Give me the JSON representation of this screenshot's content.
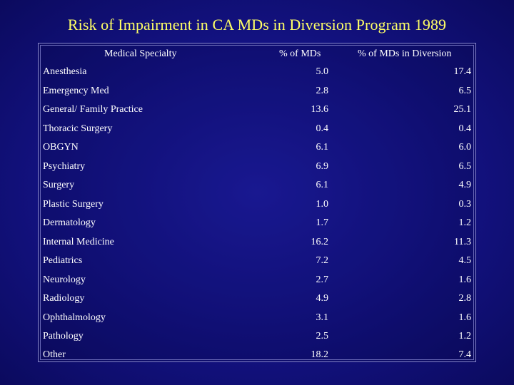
{
  "slide": {
    "title": "Risk of Impairment in CA MDs in Diversion Program 1989"
  },
  "table": {
    "headers": {
      "specialty": "Medical Specialty",
      "pct_mds": "% of MDs",
      "pct_diversion": "% of MDs in Diversion"
    },
    "rows": [
      {
        "specialty": "Anesthesia",
        "pct_mds": "5.0",
        "pct_diversion": "17.4"
      },
      {
        "specialty": "Emergency Med",
        "pct_mds": "2.8",
        "pct_diversion": "6.5"
      },
      {
        "specialty": "General/ Family Practice",
        "pct_mds": "13.6",
        "pct_diversion": "25.1"
      },
      {
        "specialty": "Thoracic Surgery",
        "pct_mds": "0.4",
        "pct_diversion": "0.4"
      },
      {
        "specialty": "OBGYN",
        "pct_mds": "6.1",
        "pct_diversion": "6.0"
      },
      {
        "specialty": "Psychiatry",
        "pct_mds": "6.9",
        "pct_diversion": "6.5"
      },
      {
        "specialty": "Surgery",
        "pct_mds": "6.1",
        "pct_diversion": "4.9"
      },
      {
        "specialty": "Plastic Surgery",
        "pct_mds": "1.0",
        "pct_diversion": "0.3"
      },
      {
        "specialty": "Dermatology",
        "pct_mds": "1.7",
        "pct_diversion": "1.2"
      },
      {
        "specialty": "Internal Medicine",
        "pct_mds": "16.2",
        "pct_diversion": "11.3"
      },
      {
        "specialty": "Pediatrics",
        "pct_mds": "7.2",
        "pct_diversion": "4.5"
      },
      {
        "specialty": "Neurology",
        "pct_mds": "2.7",
        "pct_diversion": "1.6"
      },
      {
        "specialty": "Radiology",
        "pct_mds": "4.9",
        "pct_diversion": "2.8"
      },
      {
        "specialty": "Ophthalmology",
        "pct_mds": "3.1",
        "pct_diversion": "1.6"
      },
      {
        "specialty": "Pathology",
        "pct_mds": "2.5",
        "pct_diversion": "1.2"
      },
      {
        "specialty": "Other",
        "pct_mds": "18.2",
        "pct_diversion": "7.4"
      }
    ]
  },
  "colors": {
    "title": "#ffff66",
    "text": "#ffffff",
    "background": "#15148a"
  }
}
